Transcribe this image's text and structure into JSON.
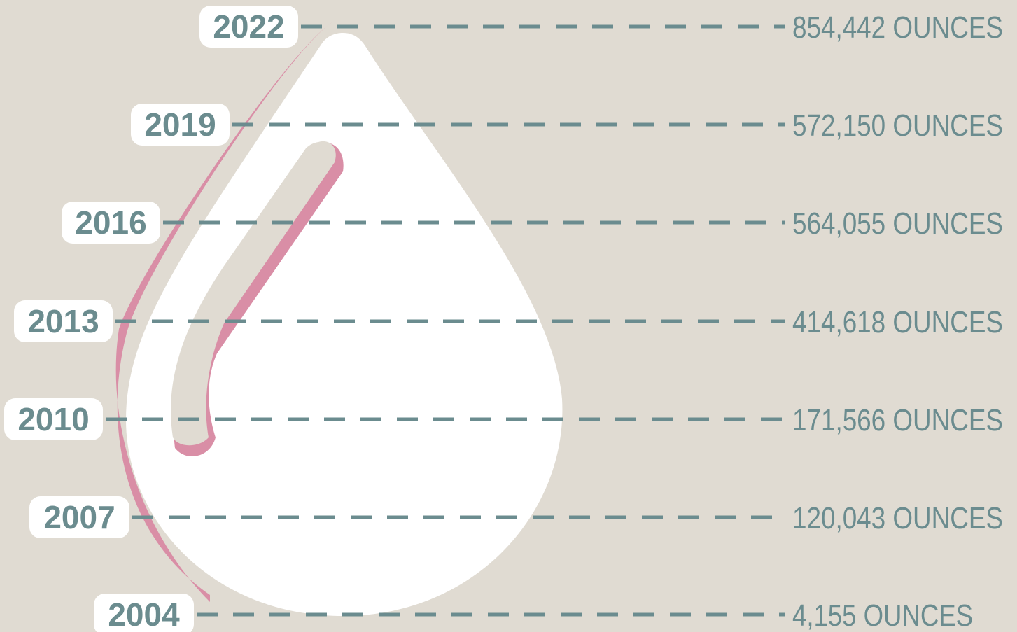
{
  "chart_data": {
    "type": "bar",
    "title": "",
    "xlabel": "",
    "ylabel": "",
    "unit": "OUNCES",
    "categories": [
      "2022",
      "2019",
      "2016",
      "2013",
      "2010",
      "2007",
      "2004"
    ],
    "values": [
      854442,
      572150,
      564055,
      414618,
      171566,
      120043,
      4155
    ],
    "value_labels": [
      "854,442 OUNCES",
      "572,150 OUNCES",
      "564,055 OUNCES",
      "414,618 OUNCES",
      "171,566 OUNCES",
      "120,043 OUNCES",
      "4,155 OUNCES"
    ]
  },
  "colors": {
    "background": "#e0dbd2",
    "drop_fill": "#ffffff",
    "drop_accent": "#d98ea6",
    "lines_and_text": "#6b8c8f",
    "label_box": "#ffffff"
  },
  "icons": {
    "drop": "water-drop-icon"
  }
}
